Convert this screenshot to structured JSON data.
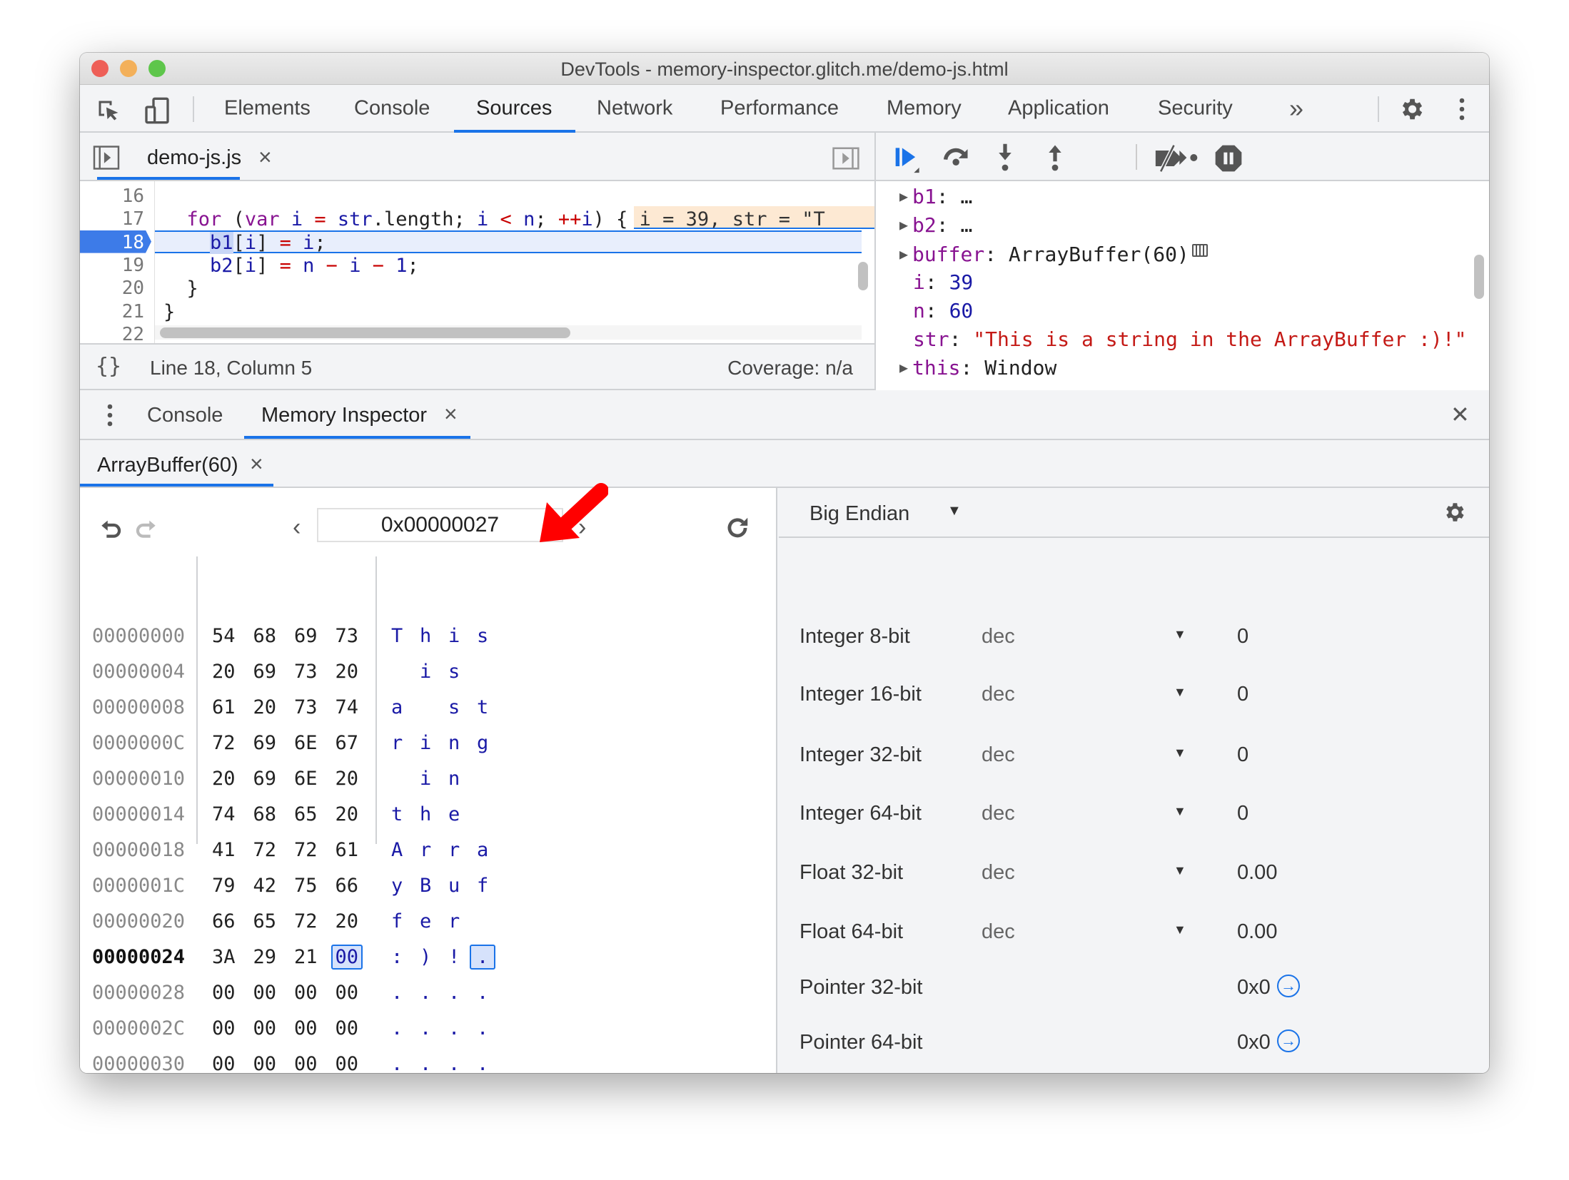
{
  "window": {
    "title": "DevTools - memory-inspector.glitch.me/demo-js.html",
    "traffic_lights": [
      "#ee5f57",
      "#f3b05a",
      "#5ec64b"
    ]
  },
  "main_tabs": [
    {
      "label": "Elements"
    },
    {
      "label": "Console"
    },
    {
      "label": "Sources",
      "active": true
    },
    {
      "label": "Network"
    },
    {
      "label": "Performance"
    },
    {
      "label": "Memory"
    },
    {
      "label": "Application"
    },
    {
      "label": "Security"
    }
  ],
  "more_tabs_label": "»",
  "accent": "#1a73e8",
  "sources": {
    "file_tab": {
      "label": "demo-js.js",
      "close": "×"
    },
    "code_lines": [
      {
        "num": "16",
        "indent": 0,
        "tokens": []
      },
      {
        "num": "17",
        "indent": 2,
        "tokens": [
          [
            "kw",
            "for"
          ],
          [
            "pl",
            " ("
          ],
          [
            "kw",
            "var"
          ],
          [
            "pl",
            " "
          ],
          [
            "var",
            "i"
          ],
          [
            "pl",
            " "
          ],
          [
            "op",
            "="
          ],
          [
            "pl",
            " "
          ],
          [
            "var",
            "str"
          ],
          [
            "pl",
            ".length; "
          ],
          [
            "var",
            "i"
          ],
          [
            "pl",
            " "
          ],
          [
            "op",
            "<"
          ],
          [
            "pl",
            " "
          ],
          [
            "var",
            "n"
          ],
          [
            "pl",
            "; "
          ],
          [
            "op",
            "++"
          ],
          [
            "var",
            "i"
          ],
          [
            "pl",
            ") {"
          ]
        ],
        "inline_value": "i = 39, str = \"T"
      },
      {
        "num": "18",
        "indent": 4,
        "current": true,
        "tokens": [
          [
            "var",
            "b1"
          ],
          [
            "pl",
            "["
          ],
          [
            "var",
            "i"
          ],
          [
            "pl",
            "] "
          ],
          [
            "op",
            "="
          ],
          [
            "pl",
            " "
          ],
          [
            "var",
            "i"
          ],
          [
            "pl",
            ";"
          ]
        ]
      },
      {
        "num": "19",
        "indent": 4,
        "tokens": [
          [
            "var",
            "b2"
          ],
          [
            "pl",
            "["
          ],
          [
            "var",
            "i"
          ],
          [
            "pl",
            "] "
          ],
          [
            "op",
            "="
          ],
          [
            "pl",
            " "
          ],
          [
            "var",
            "n"
          ],
          [
            "pl",
            " "
          ],
          [
            "op",
            "−"
          ],
          [
            "pl",
            " "
          ],
          [
            "var",
            "i"
          ],
          [
            "pl",
            " "
          ],
          [
            "op",
            "−"
          ],
          [
            "pl",
            " "
          ],
          [
            "var",
            "1"
          ],
          [
            "pl",
            ";"
          ]
        ]
      },
      {
        "num": "20",
        "indent": 2,
        "tokens": [
          [
            "pl",
            "}"
          ]
        ]
      },
      {
        "num": "21",
        "indent": 0,
        "tokens": [
          [
            "pl",
            "}"
          ]
        ]
      },
      {
        "num": "22",
        "indent": 0,
        "tokens": []
      }
    ],
    "status": {
      "pretty_print": "{}",
      "position": "Line 18, Column 5",
      "coverage": "Coverage: n/a"
    }
  },
  "scope": [
    {
      "expandable": true,
      "name": "b1",
      "sep": ": ",
      "value": "…",
      "kind": "plain"
    },
    {
      "expandable": true,
      "name": "b2",
      "sep": ": ",
      "value": "…",
      "kind": "plain"
    },
    {
      "expandable": true,
      "name": "buffer",
      "sep": ": ",
      "value": "ArrayBuffer(60)",
      "kind": "plain",
      "memory_icon": true
    },
    {
      "expandable": false,
      "name": "i",
      "sep": ": ",
      "value": "39",
      "kind": "num"
    },
    {
      "expandable": false,
      "name": "n",
      "sep": ": ",
      "value": "60",
      "kind": "num"
    },
    {
      "expandable": false,
      "name": "str",
      "sep": ": ",
      "value": "\"This is a string in the ArrayBuffer :)!\"",
      "kind": "str"
    },
    {
      "expandable": true,
      "name": "this",
      "sep": ": ",
      "value": "Window",
      "kind": "plain"
    }
  ],
  "drawer": {
    "tabs": [
      {
        "label": "Console"
      },
      {
        "label": "Memory Inspector",
        "active": true,
        "close": "×"
      }
    ],
    "close": "✕"
  },
  "memory": {
    "buffer_tab": {
      "label": "ArrayBuffer(60)",
      "close": "×"
    },
    "address": "0x00000027",
    "rows": [
      {
        "address": "00000000",
        "bytes": [
          "54",
          "68",
          "69",
          "73"
        ],
        "ascii": [
          "T",
          "h",
          "i",
          "s"
        ]
      },
      {
        "address": "00000004",
        "bytes": [
          "20",
          "69",
          "73",
          "20"
        ],
        "ascii": [
          " ",
          "i",
          "s",
          " "
        ]
      },
      {
        "address": "00000008",
        "bytes": [
          "61",
          "20",
          "73",
          "74"
        ],
        "ascii": [
          "a",
          " ",
          "s",
          "t"
        ]
      },
      {
        "address": "0000000C",
        "bytes": [
          "72",
          "69",
          "6E",
          "67"
        ],
        "ascii": [
          "r",
          "i",
          "n",
          "g"
        ]
      },
      {
        "address": "00000010",
        "bytes": [
          "20",
          "69",
          "6E",
          "20"
        ],
        "ascii": [
          " ",
          "i",
          "n",
          " "
        ]
      },
      {
        "address": "00000014",
        "bytes": [
          "74",
          "68",
          "65",
          "20"
        ],
        "ascii": [
          "t",
          "h",
          "e",
          " "
        ]
      },
      {
        "address": "00000018",
        "bytes": [
          "41",
          "72",
          "72",
          "61"
        ],
        "ascii": [
          "A",
          "r",
          "r",
          "a"
        ]
      },
      {
        "address": "0000001C",
        "bytes": [
          "79",
          "42",
          "75",
          "66"
        ],
        "ascii": [
          "y",
          "B",
          "u",
          "f"
        ]
      },
      {
        "address": "00000020",
        "bytes": [
          "66",
          "65",
          "72",
          "20"
        ],
        "ascii": [
          "f",
          "e",
          "r",
          " "
        ]
      },
      {
        "address": "00000024",
        "bytes": [
          "3A",
          "29",
          "21",
          "00"
        ],
        "ascii": [
          ":",
          ")",
          "!",
          "."
        ],
        "current": true,
        "selected_index": 3
      },
      {
        "address": "00000028",
        "bytes": [
          "00",
          "00",
          "00",
          "00"
        ],
        "ascii": [
          ".",
          ".",
          ".",
          "."
        ]
      },
      {
        "address": "0000002C",
        "bytes": [
          "00",
          "00",
          "00",
          "00"
        ],
        "ascii": [
          ".",
          ".",
          ".",
          "."
        ]
      },
      {
        "address": "00000030",
        "bytes": [
          "00",
          "00",
          "00",
          "00"
        ],
        "ascii": [
          ".",
          ".",
          ".",
          "."
        ]
      }
    ],
    "endianness": "Big Endian",
    "values": [
      {
        "label": "Integer 8-bit",
        "format": "dec",
        "value": "0"
      },
      {
        "label": "Integer 16-bit",
        "format": "dec",
        "value": "0"
      },
      {
        "label": "Integer 32-bit",
        "format": "dec",
        "value": "0"
      },
      {
        "label": "Integer 64-bit",
        "format": "dec",
        "value": "0"
      },
      {
        "label": "Float 32-bit",
        "format": "dec",
        "value": "0.00"
      },
      {
        "label": "Float 64-bit",
        "format": "dec",
        "value": "0.00"
      },
      {
        "label": "Pointer 32-bit",
        "value": "0x0",
        "jump": true
      },
      {
        "label": "Pointer 64-bit",
        "value": "0x0",
        "jump": true
      }
    ]
  }
}
